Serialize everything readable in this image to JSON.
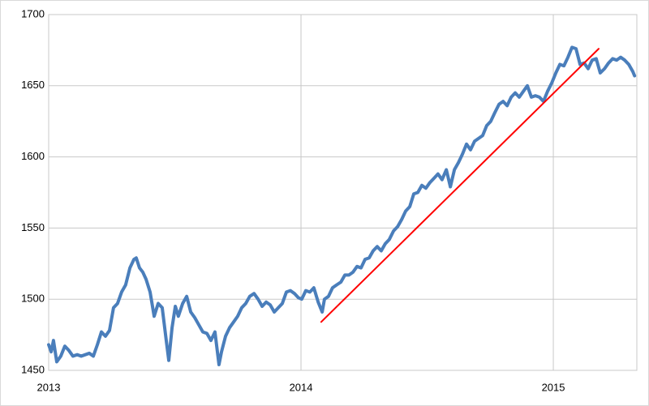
{
  "chart_data": {
    "type": "line",
    "xlim": [
      2013,
      2015.331
    ],
    "xticks": [
      2013,
      2014,
      2015
    ],
    "ylim": [
      1450,
      1700
    ],
    "yticks": [
      1450,
      1500,
      1550,
      1600,
      1650,
      1700
    ],
    "grid": true,
    "series": [
      {
        "color": "#4a7ebb",
        "x": [
          2013,
          2013.01,
          2013.019,
          2013.032,
          2013.048,
          2013.064,
          2013.08,
          2013.096,
          2013.113,
          2013.129,
          2013.145,
          2013.161,
          2013.177,
          2013.193,
          2013.209,
          2013.225,
          2013.241,
          2013.257,
          2013.273,
          2013.289,
          2013.305,
          2013.322,
          2013.338,
          2013.347,
          2013.36,
          2013.373,
          2013.386,
          2013.402,
          2013.418,
          2013.434,
          2013.45,
          2013.466,
          2013.476,
          2013.489,
          2013.502,
          2013.514,
          2013.531,
          2013.547,
          2013.563,
          2013.579,
          2013.595,
          2013.611,
          2013.627,
          2013.643,
          2013.659,
          2013.675,
          2013.685,
          2013.701,
          2013.717,
          2013.733,
          2013.749,
          2013.765,
          2013.781,
          2013.797,
          2013.814,
          2013.83,
          2013.846,
          2013.862,
          2013.878,
          2013.894,
          2013.91,
          2013.926,
          2013.942,
          2013.958,
          2013.974,
          2013.99,
          2014.003,
          2014.019,
          2014.035,
          2014.051,
          2014.068,
          2014.084,
          2014.093,
          2014.109,
          2014.125,
          2014.141,
          2014.158,
          2014.174,
          2014.19,
          2014.206,
          2014.222,
          2014.238,
          2014.254,
          2014.27,
          2014.286,
          2014.302,
          2014.318,
          2014.334,
          2014.35,
          2014.367,
          2014.383,
          2014.399,
          2014.415,
          2014.431,
          2014.447,
          2014.463,
          2014.479,
          2014.495,
          2014.511,
          2014.527,
          2014.543,
          2014.559,
          2014.576,
          2014.592,
          2014.608,
          2014.624,
          2014.64,
          2014.656,
          2014.672,
          2014.688,
          2014.704,
          2014.72,
          2014.736,
          2014.752,
          2014.768,
          2014.785,
          2014.801,
          2014.817,
          2014.833,
          2014.849,
          2014.865,
          2014.881,
          2014.897,
          2014.913,
          2014.929,
          2014.945,
          2014.961,
          2014.977,
          2014.994,
          2015.01,
          2015.026,
          2015.042,
          2015.058,
          2015.074,
          2015.09,
          2015.106,
          2015.122,
          2015.138,
          2015.154,
          2015.17,
          2015.186,
          2015.203,
          2015.219,
          2015.235,
          2015.251,
          2015.267,
          2015.283,
          2015.299,
          2015.315,
          2015.322
        ],
        "values": [
          1468,
          1463,
          1471,
          1456,
          1460,
          1467,
          1464,
          1460,
          1461,
          1460,
          1461,
          1462,
          1460,
          1468,
          1477,
          1474,
          1478,
          1494,
          1497,
          1505,
          1510,
          1522,
          1528,
          1529,
          1522,
          1519,
          1514,
          1505,
          1488,
          1497,
          1494,
          1471,
          1457,
          1480,
          1495,
          1488,
          1497,
          1502,
          1491,
          1487,
          1482,
          1477,
          1476,
          1471,
          1477,
          1454,
          1463,
          1474,
          1480,
          1484,
          1488,
          1494,
          1497,
          1502,
          1504,
          1500,
          1495,
          1498,
          1496,
          1491,
          1494,
          1497,
          1505,
          1506,
          1504,
          1501,
          1500,
          1506,
          1505,
          1508,
          1498,
          1491,
          1500,
          1502,
          1508,
          1510,
          1512,
          1517,
          1517,
          1519,
          1523,
          1522,
          1528,
          1529,
          1534,
          1537,
          1534,
          1539,
          1542,
          1548,
          1551,
          1556,
          1562,
          1565,
          1574,
          1575,
          1580,
          1578,
          1582,
          1585,
          1588,
          1584,
          1591,
          1579,
          1591,
          1596,
          1602,
          1609,
          1605,
          1611,
          1613,
          1615,
          1622,
          1625,
          1631,
          1637,
          1639,
          1636,
          1642,
          1645,
          1642,
          1646,
          1650,
          1642,
          1643,
          1642,
          1639,
          1646,
          1652,
          1659,
          1665,
          1664,
          1670,
          1677,
          1676,
          1665,
          1666,
          1662,
          1668,
          1669,
          1659,
          1662,
          1666,
          1669,
          1668,
          1670,
          1668,
          1665,
          1660,
          1657
        ]
      },
      {
        "color": "#ff0000",
        "x": [
          2014.08,
          2015.18
        ],
        "values": [
          1484,
          1676
        ]
      }
    ]
  }
}
